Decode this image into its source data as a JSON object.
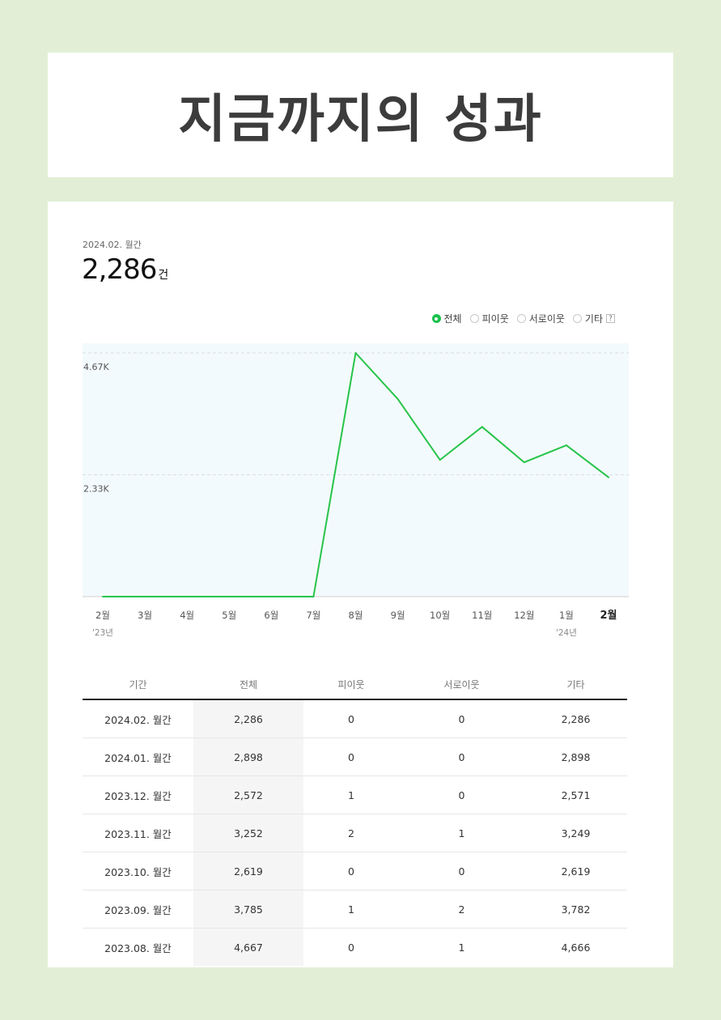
{
  "heading": "지금까지의 성과",
  "summary": {
    "period": "2024.02. 월간",
    "value": "2,286",
    "unit": "건"
  },
  "legend": {
    "items": [
      {
        "label": "전체",
        "selected": true
      },
      {
        "label": "피이웃",
        "selected": false
      },
      {
        "label": "서로이웃",
        "selected": false
      },
      {
        "label": "기타",
        "selected": false
      }
    ],
    "help": "?"
  },
  "colors": {
    "line": "#27c44a",
    "plot_bg": "#f3fafd",
    "page_bg": "#e2efd6"
  },
  "chart_data": {
    "type": "line",
    "categories": [
      "2월",
      "3월",
      "4월",
      "5월",
      "6월",
      "7월",
      "8월",
      "9월",
      "10월",
      "11월",
      "12월",
      "1월",
      "2월"
    ],
    "year_labels": [
      "'23년",
      "",
      "",
      "",
      "",
      "",
      "",
      "",
      "",
      "",
      "",
      "'24년",
      ""
    ],
    "values": [
      0,
      0,
      0,
      0,
      0,
      0,
      4667,
      3785,
      2619,
      3252,
      2572,
      2898,
      2286
    ],
    "y_ticks": [
      {
        "value": 4667,
        "label": "4.67K"
      },
      {
        "value": 2333,
        "label": "2.33K"
      }
    ],
    "ylim": [
      0,
      4667
    ],
    "highlight_index": 12,
    "grid": true,
    "title": "",
    "xlabel": "",
    "ylabel": ""
  },
  "table": {
    "headers": [
      "기간",
      "전체",
      "피이웃",
      "서로이웃",
      "기타"
    ],
    "rows": [
      [
        "2024.02. 월간",
        "2,286",
        "0",
        "0",
        "2,286"
      ],
      [
        "2024.01. 월간",
        "2,898",
        "0",
        "0",
        "2,898"
      ],
      [
        "2023.12. 월간",
        "2,572",
        "1",
        "0",
        "2,571"
      ],
      [
        "2023.11. 월간",
        "3,252",
        "2",
        "1",
        "3,249"
      ],
      [
        "2023.10. 월간",
        "2,619",
        "0",
        "0",
        "2,619"
      ],
      [
        "2023.09. 월간",
        "3,785",
        "1",
        "2",
        "3,782"
      ],
      [
        "2023.08. 월간",
        "4,667",
        "0",
        "1",
        "4,666"
      ]
    ]
  }
}
